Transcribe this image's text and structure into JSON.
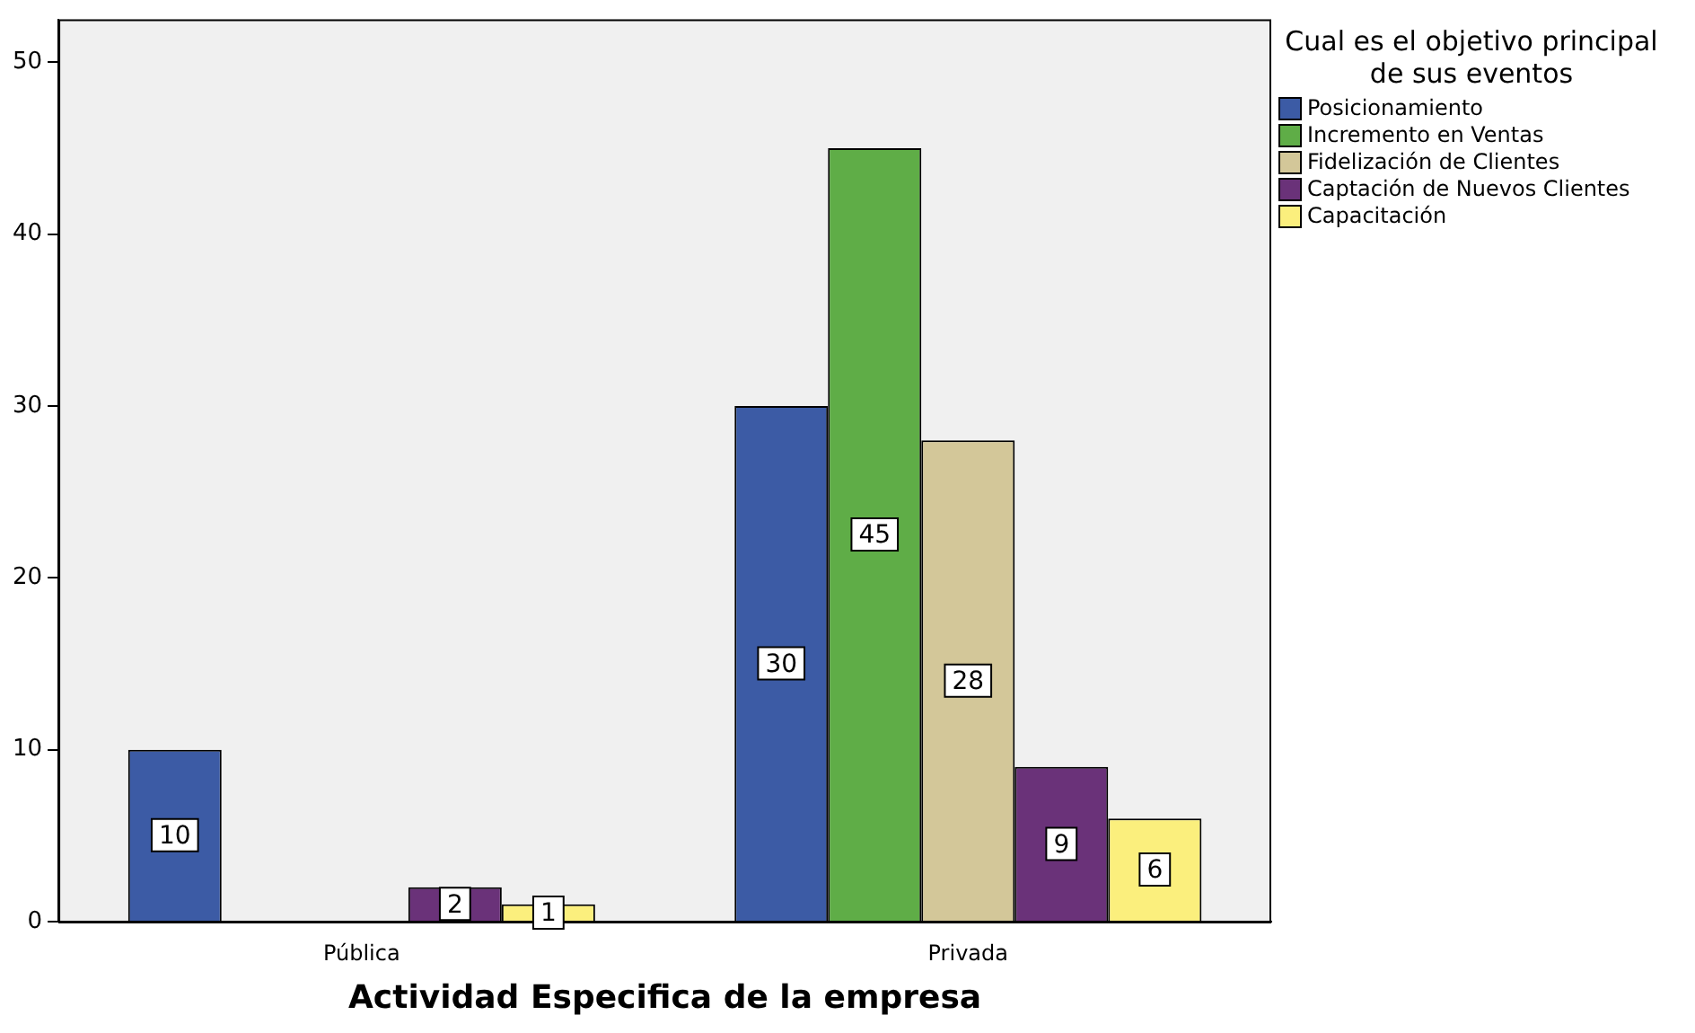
{
  "chart_data": {
    "type": "bar",
    "xlabel": "Actividad Especifica de la empresa",
    "legend_title": "Cual es el objetivo principal de sus eventos",
    "categories": [
      "Pública",
      "Privada"
    ],
    "series": [
      {
        "name": "Posicionamiento",
        "color": "#3c5ba5",
        "values": [
          10,
          30
        ]
      },
      {
        "name": "Incremento en Ventas",
        "color": "#5fad47",
        "values": [
          null,
          45
        ]
      },
      {
        "name": "Fidelización de Clientes",
        "color": "#d3c799",
        "values": [
          null,
          28
        ]
      },
      {
        "name": "Captación de Nuevos Clientes",
        "color": "#6a3279",
        "values": [
          2,
          9
        ]
      },
      {
        "name": "Capacitación",
        "color": "#fbef7d",
        "values": [
          1,
          6
        ]
      }
    ],
    "ylim": [
      0,
      52.5
    ],
    "yticks": [
      0,
      10,
      20,
      30,
      40,
      50
    ],
    "grid": false,
    "legend": "top right",
    "data_labels": true
  }
}
